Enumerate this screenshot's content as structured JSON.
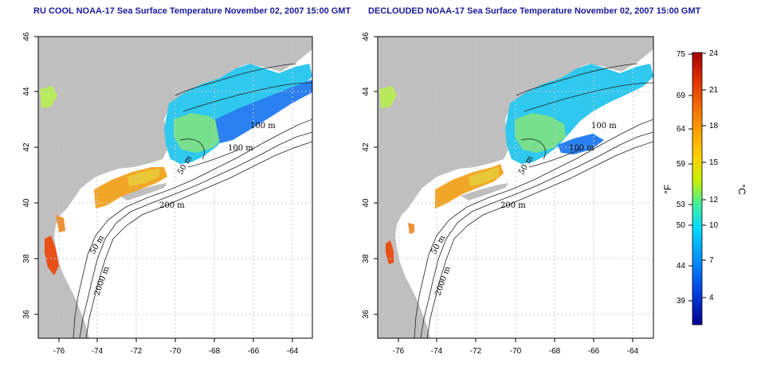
{
  "panels": [
    {
      "title": "RU COOL NOAA-17 Sea Surface Temperature November 02, 2007 15:00 GMT"
    },
    {
      "title": "DECLOUDED NOAA-17 Sea Surface Temperature November 02, 2007 15:00 GMT"
    }
  ],
  "axes": {
    "lat_ticks": [
      "46",
      "44",
      "42",
      "40",
      "38",
      "36"
    ],
    "lon_ticks": [
      "-76",
      "-74",
      "-72",
      "-70",
      "-68",
      "-66",
      "-64"
    ]
  },
  "contours": {
    "left": [
      "100 m",
      "100 m",
      "50 m",
      "200 m",
      "50 m",
      "2000 m"
    ],
    "right": [
      "100 m",
      "100 m",
      "50 m",
      "200 m",
      "50 m",
      "2000 m"
    ]
  },
  "colorbar": {
    "f_label": "°F",
    "c_label": "°C",
    "f_ticks": [
      "75",
      "69",
      "64",
      "59",
      "53",
      "50",
      "44",
      "39"
    ],
    "c_ticks": [
      "24",
      "21",
      "18",
      "15",
      "12",
      "10",
      "7",
      "4"
    ]
  },
  "colors": {
    "land": "#bfbfbf",
    "title": "#1a1a9c",
    "colorbar_stops": [
      "#a50000",
      "#e03000",
      "#ff8a00",
      "#ffd000",
      "#c8f000",
      "#40f0a0",
      "#00d8ff",
      "#0090ff",
      "#0040e0",
      "#000090"
    ]
  }
}
